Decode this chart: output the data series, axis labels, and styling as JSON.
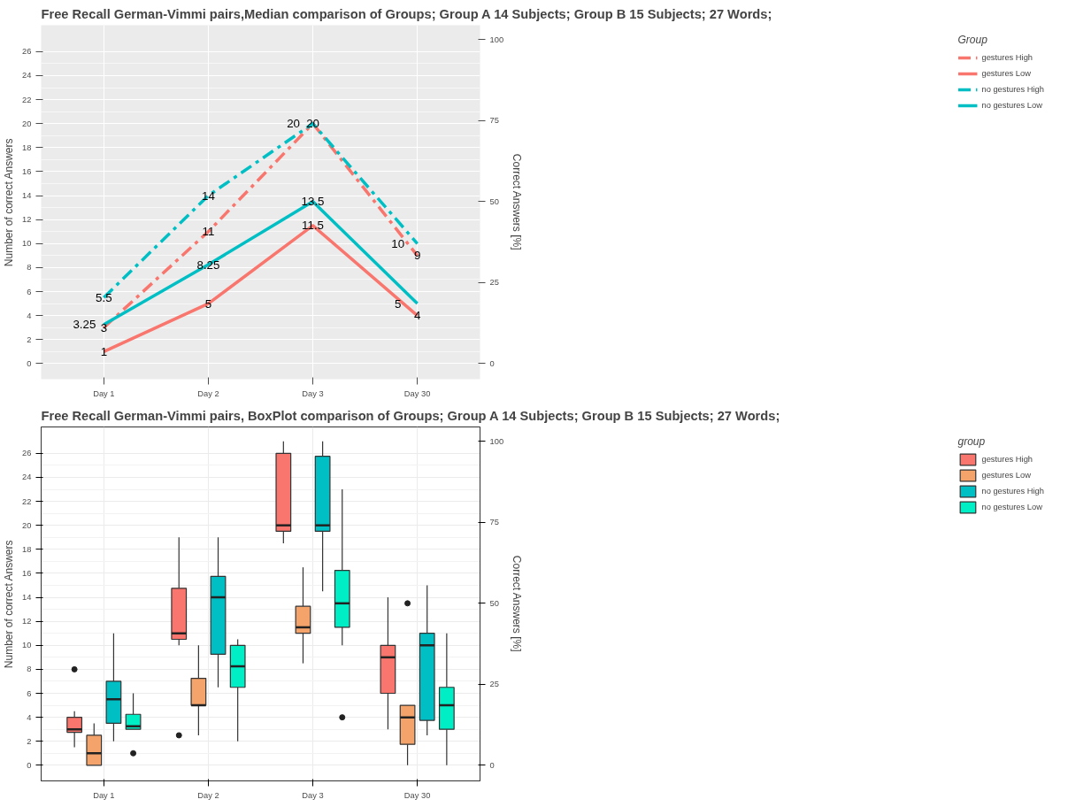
{
  "chart_data": [
    {
      "type": "line",
      "title": "Free Recall German-Vimmi pairs,Median comparison of Groups; Group A 14 Subjects; Group B 15 Subjects; 27 Words;",
      "ylabel": "Number of correct Answers",
      "y2label": "Correct Answers [%]",
      "legend_title": "Group",
      "categories": [
        "Day 1",
        "Day 2",
        "Day 3",
        "Day 30"
      ],
      "series": [
        {
          "name": "gestures High",
          "color": "#f8766d",
          "line_style": "dashed",
          "values": [
            3,
            11,
            20,
            9
          ]
        },
        {
          "name": "gestures Low",
          "color": "#f8766d",
          "line_style": "solid",
          "values": [
            1,
            5,
            11.5,
            4
          ]
        },
        {
          "name": "no gestures High",
          "color": "#00bfc4",
          "line_style": "dashed",
          "values": [
            5.5,
            14,
            20,
            10
          ]
        },
        {
          "name": "no gestures Low",
          "color": "#00bfc4",
          "line_style": "solid",
          "values": [
            3.25,
            8.25,
            13.5,
            5
          ]
        }
      ],
      "data_labels": true,
      "ylim": [
        -1.3,
        28.2
      ],
      "yticks": [
        0,
        2,
        4,
        6,
        8,
        10,
        12,
        14,
        16,
        18,
        20,
        22,
        24,
        26
      ],
      "y2lim": [
        -4.8,
        104.4
      ],
      "y2ticks": [
        0,
        25,
        50,
        75,
        100
      ],
      "grid": true,
      "legend": "right"
    },
    {
      "type": "box",
      "title": "Free Recall German-Vimmi pairs, BoxPlot comparison of Groups; Group A 14 Subjects; Group B 15 Subjects; 27 Words;",
      "ylabel": "Number of correct Answers",
      "y2label": "Correct Answers [%]",
      "legend_title": "group",
      "categories": [
        "Day 1",
        "Day 2",
        "Day 3",
        "Day 30"
      ],
      "series": [
        {
          "name": "gestures High",
          "color": "#f8766d",
          "boxes": [
            {
              "low": 1.5,
              "q1": 2.75,
              "median": 3,
              "q3": 4,
              "high": 4.5,
              "outliers": [
                8
              ]
            },
            {
              "low": 10,
              "q1": 10.5,
              "median": 11,
              "q3": 14.75,
              "high": 19,
              "outliers": [
                2.5
              ]
            },
            {
              "low": 18.5,
              "q1": 19.5,
              "median": 20,
              "q3": 26,
              "high": 27
            },
            {
              "low": 3,
              "q1": 6,
              "median": 9,
              "q3": 10,
              "high": 14
            }
          ]
        },
        {
          "name": "gestures Low",
          "color": "#f4a46a",
          "boxes": [
            {
              "low": 0,
              "q1": 0,
              "median": 1,
              "q3": 2.5,
              "high": 3.5
            },
            {
              "low": 2.5,
              "q1": 5,
              "median": 5,
              "q3": 7.25,
              "high": 10
            },
            {
              "low": 8.5,
              "q1": 11,
              "median": 11.5,
              "q3": 13.25,
              "high": 16.5
            },
            {
              "low": 0,
              "q1": 1.75,
              "median": 4,
              "q3": 5,
              "high": 5,
              "outliers": [
                13.5
              ]
            }
          ]
        },
        {
          "name": "no gestures High",
          "color": "#00bfc4",
          "boxes": [
            {
              "low": 2,
              "q1": 3.5,
              "median": 5.5,
              "q3": 7,
              "high": 11
            },
            {
              "low": 6.5,
              "q1": 9.25,
              "median": 14,
              "q3": 15.75,
              "high": 19
            },
            {
              "low": 14.5,
              "q1": 19.5,
              "median": 20,
              "q3": 25.75,
              "high": 27
            },
            {
              "low": 2.5,
              "q1": 3.75,
              "median": 10,
              "q3": 11,
              "high": 15
            }
          ]
        },
        {
          "name": "no gestures Low",
          "color": "#00eec6",
          "boxes": [
            {
              "low": 3,
              "q1": 3,
              "median": 3.25,
              "q3": 4.25,
              "high": 6,
              "outliers": [
                1
              ]
            },
            {
              "low": 2,
              "q1": 6.5,
              "median": 8.25,
              "q3": 10,
              "high": 10.5
            },
            {
              "low": 10,
              "q1": 11.5,
              "median": 13.5,
              "q3": 16.25,
              "high": 23,
              "outliers": [
                4
              ]
            },
            {
              "low": 0,
              "q1": 3,
              "median": 5,
              "q3": 6.5,
              "high": 11
            }
          ]
        }
      ],
      "ylim": [
        -1.3,
        28.2
      ],
      "yticks": [
        0,
        2,
        4,
        6,
        8,
        10,
        12,
        14,
        16,
        18,
        20,
        22,
        24,
        26
      ],
      "y2lim": [
        -4.8,
        104.4
      ],
      "y2ticks": [
        0,
        25,
        50,
        75,
        100
      ],
      "grid": true,
      "legend": "right"
    }
  ]
}
